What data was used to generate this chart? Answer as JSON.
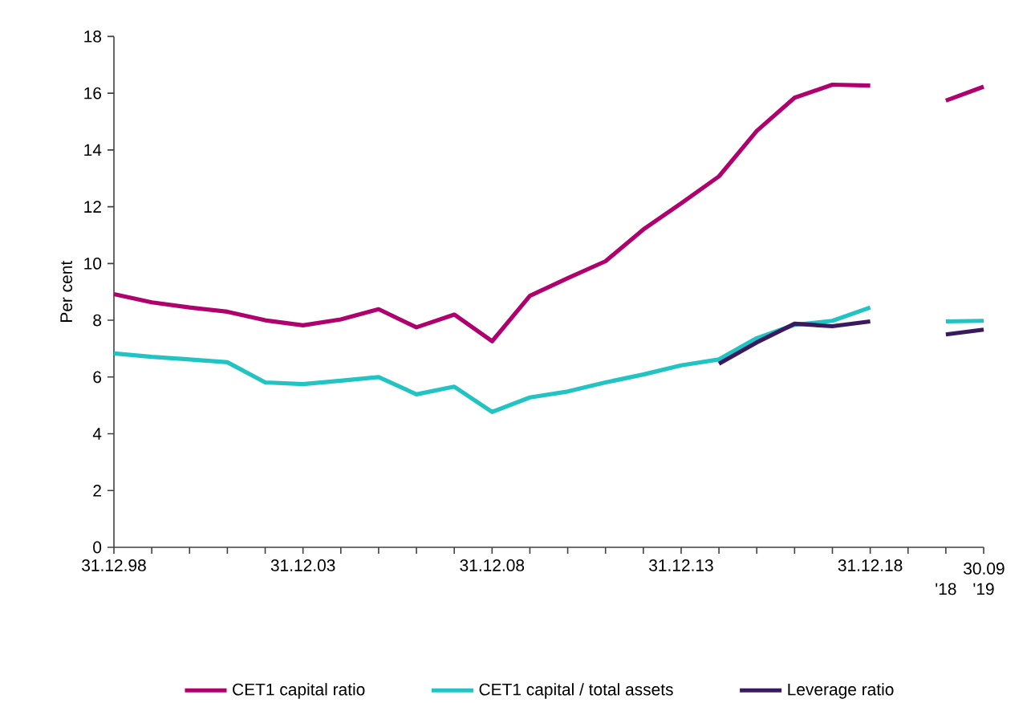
{
  "chart_data": {
    "type": "line",
    "ylabel": "Per cent",
    "categories": [
      "31.12.98",
      null,
      null,
      null,
      null,
      "31.12.03",
      null,
      null,
      null,
      null,
      "31.12.08",
      null,
      null,
      null,
      null,
      "31.12.13",
      null,
      null,
      null,
      null,
      "31.12.18",
      null,
      "'18",
      "'19"
    ],
    "annotations": [
      "30.09"
    ],
    "series": [
      {
        "name": "CET1 capital ratio",
        "color": "#b0006e",
        "values": [
          8.92,
          8.63,
          8.45,
          8.3,
          8.0,
          7.82,
          8.03,
          8.39,
          7.75,
          8.2,
          7.26,
          8.86,
          9.48,
          10.08,
          11.2,
          12.12,
          13.07,
          14.67,
          15.84,
          16.3,
          16.27,
          null,
          15.74,
          16.23
        ]
      },
      {
        "name": "CET1 capital / total assets",
        "color": "#22c3c3",
        "values": [
          6.83,
          6.71,
          6.62,
          6.52,
          5.81,
          5.75,
          5.87,
          6.0,
          5.39,
          5.66,
          4.77,
          5.28,
          5.49,
          5.81,
          6.09,
          6.41,
          6.62,
          7.37,
          7.84,
          7.98,
          8.45,
          null,
          7.96,
          7.98
        ]
      },
      {
        "name": "Leverage ratio",
        "color": "#3a1a5e",
        "values": [
          null,
          null,
          null,
          null,
          null,
          null,
          null,
          null,
          null,
          null,
          null,
          null,
          null,
          null,
          null,
          null,
          6.47,
          7.22,
          7.88,
          7.79,
          7.96,
          null,
          7.5,
          7.67
        ]
      }
    ],
    "ylim": [
      0,
      18
    ],
    "yticks": [
      0,
      2,
      4,
      6,
      8,
      10,
      12,
      14,
      16,
      18
    ],
    "grid": false,
    "legend": "bottom",
    "line_style": "solid",
    "marker": "none"
  }
}
